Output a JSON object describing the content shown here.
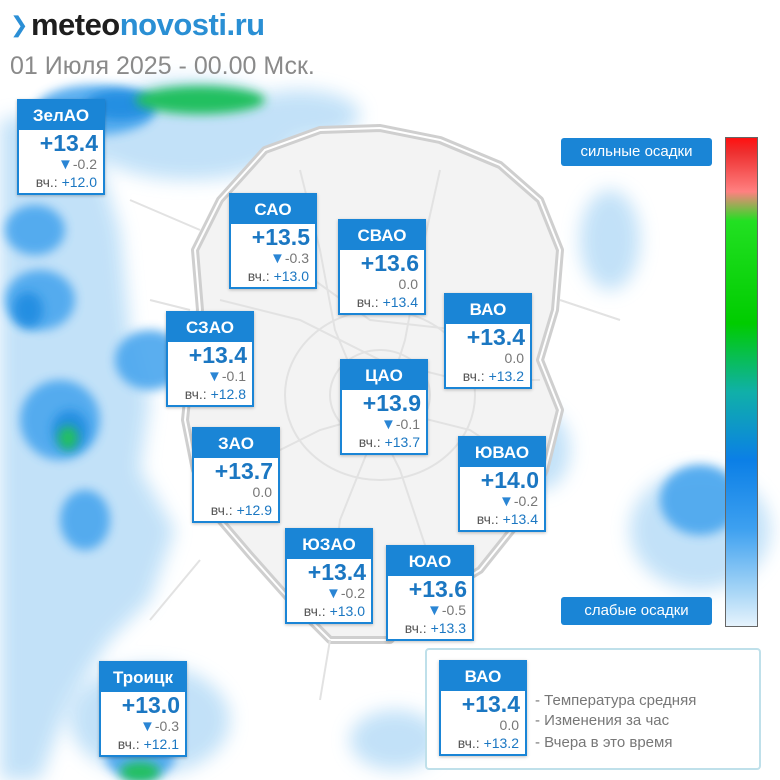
{
  "brand": {
    "part1": "meteo",
    "part2": "novosti.ru"
  },
  "date_line": "01 Июля 2025 - 00.00 Мск.",
  "yesterday_prefix": "вч.:",
  "districts": [
    {
      "name": "ЗелАО",
      "temp": "+13.4",
      "change": "-0.2",
      "falling": true,
      "yesterday": "+12.0"
    },
    {
      "name": "САО",
      "temp": "+13.5",
      "change": "-0.3",
      "falling": true,
      "yesterday": "+13.0"
    },
    {
      "name": "СВАО",
      "temp": "+13.6",
      "change": "0.0",
      "falling": false,
      "yesterday": "+13.4"
    },
    {
      "name": "ВАО",
      "temp": "+13.4",
      "change": "0.0",
      "falling": false,
      "yesterday": "+13.2"
    },
    {
      "name": "СЗАО",
      "temp": "+13.4",
      "change": "-0.1",
      "falling": true,
      "yesterday": "+12.8"
    },
    {
      "name": "ЦАО",
      "temp": "+13.9",
      "change": "-0.1",
      "falling": true,
      "yesterday": "+13.7"
    },
    {
      "name": "ЗАО",
      "temp": "+13.7",
      "change": "0.0",
      "falling": false,
      "yesterday": "+12.9"
    },
    {
      "name": "ЮВАО",
      "temp": "+14.0",
      "change": "-0.2",
      "falling": true,
      "yesterday": "+13.4"
    },
    {
      "name": "ЮЗАО",
      "temp": "+13.4",
      "change": "-0.2",
      "falling": true,
      "yesterday": "+13.0"
    },
    {
      "name": "ЮАО",
      "temp": "+13.6",
      "change": "-0.5",
      "falling": true,
      "yesterday": "+13.3"
    },
    {
      "name": "Троицк",
      "temp": "+13.0",
      "change": "-0.3",
      "falling": true,
      "yesterday": "+12.1"
    }
  ],
  "precip_scale": {
    "top_label": "сильные осадки",
    "bottom_label": "слабые осадки"
  },
  "legend": {
    "card": {
      "name": "ВАО",
      "temp": "+13.4",
      "change": "0.0",
      "falling": false,
      "yesterday": "+13.2"
    },
    "items": [
      "- Температура средняя",
      "- Изменения за час",
      "- Вчера в это время"
    ]
  },
  "colors": {
    "accent": "#1a85d6",
    "temp_text": "#1b77c2",
    "heavy": "#ff1111",
    "light": "#e6f3fd"
  }
}
